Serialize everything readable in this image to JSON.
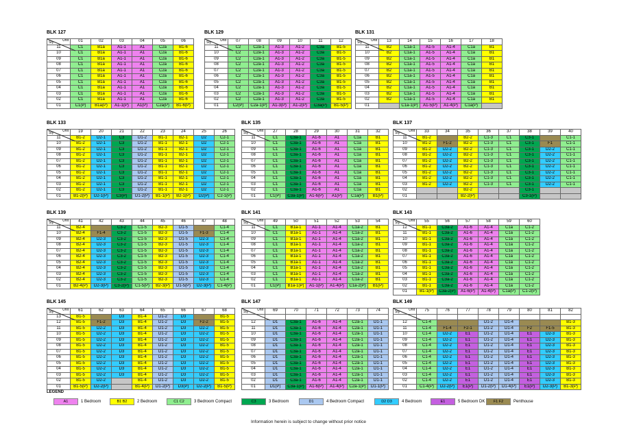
{
  "corner": {
    "top": "Unit",
    "bottom": "Sty"
  },
  "footer": "Information herein is subject to change without prior notice",
  "palette": {
    "pink": "#EE82EE",
    "yellow": "#FFFF00",
    "light_green": "#90EE90",
    "dark_green": "#00A650",
    "light_blue": "#AAC8F0",
    "cyan": "#33CCFF",
    "purple": "#C45FE0",
    "brown": "#9A8A52",
    "gray": "#C6C6C6"
  },
  "legend": {
    "title": "LEGEND",
    "items": [
      {
        "code": "A1",
        "label": "1 Bedroom",
        "color": "#EE82EE"
      },
      {
        "code": "B1 B2",
        "label": "2 Bedroom",
        "color": "#FFFF00"
      },
      {
        "code": "C1 C2",
        "label": "3 Bedroom Compact",
        "color": "#90EE90"
      },
      {
        "code": "C3",
        "label": "3 Bedroom",
        "color": "#00A650"
      },
      {
        "code": "D1",
        "label": "4 Bedroom Compact",
        "color": "#AAC8F0"
      },
      {
        "code": "D2 D3",
        "label": "4 Bedroom",
        "color": "#33CCFF"
      },
      {
        "code": "E1",
        "label": "5 Bedroom DK",
        "color": "#C45FE0"
      },
      {
        "code": "F1 F2",
        "label": "Penthouse",
        "color": "#9A8A52"
      }
    ]
  },
  "blocks": [
    {
      "title": "BLK 127",
      "units": [
        "01",
        "02",
        "03",
        "04",
        "05",
        "06"
      ],
      "rows": [
        {
          "storeys": [
            "11",
            "10",
            "09",
            "08",
            "07",
            "06",
            "05",
            "04",
            "03",
            "02"
          ],
          "cells": [
            "C1",
            "B1a",
            "A1-1",
            "A1",
            "C2a",
            "B1-6"
          ]
        },
        {
          "storeys": [
            "01"
          ],
          "cells": [
            "C1(P)",
            "B1a(P)",
            "A1-1(P)",
            "A1(P)",
            "C2a(P)",
            "B1-6(P)"
          ]
        }
      ]
    },
    {
      "title": "BLK 129",
      "units": [
        "07",
        "08",
        "09",
        "10",
        "11",
        "12"
      ],
      "rows": [
        {
          "storeys": [
            "11",
            "10",
            "09",
            "08",
            "07",
            "06",
            "05",
            "04",
            "03",
            "02"
          ],
          "cells": [
            "C2",
            "C2a-1",
            "A1-3",
            "A1-2",
            "C3a",
            "B1-5"
          ]
        },
        {
          "storeys": [
            "01"
          ],
          "cells": [
            "C2(P)",
            "C2a-1(P)",
            "A1-3(P)",
            "A1-2(P)",
            "C3a(P)",
            "B1-5(P)"
          ]
        }
      ]
    },
    {
      "title": "BLK 131",
      "units": [
        "13",
        "14",
        "15",
        "16",
        "17",
        "18"
      ],
      "rows": [
        {
          "storeys": [
            "11",
            "10",
            "09",
            "08",
            "07",
            "06",
            "05",
            "04",
            "03",
            "02"
          ],
          "cells": [
            "B2",
            "C1a-1",
            "A1-5",
            "A1-4",
            "C1a",
            "B1"
          ]
        },
        {
          "storeys": [
            "01"
          ],
          "cells": [
            "X",
            "C1a-1(P)",
            "A1-5(P)",
            "A1-4(P)",
            "C1a(P)",
            "X"
          ]
        }
      ]
    },
    {
      "title": "BLK 133",
      "units": [
        "19",
        "20",
        "21",
        "22",
        "23",
        "24",
        "25",
        "26"
      ],
      "rows": [
        {
          "storeys": [
            "11",
            "10",
            "09",
            "08",
            "07",
            "06",
            "05",
            "04",
            "03",
            "02"
          ],
          "cells": [
            "B1-2",
            "D2-1",
            "C3",
            "D1-2",
            "B1-1",
            "B2-1",
            "D2",
            "C2-1"
          ]
        },
        {
          "storeys": [
            "01"
          ],
          "cells": [
            "B1-2(P)",
            "D2-1(P)",
            "C3(P)",
            "D1-2(P)",
            "B1-1(P)",
            "B2-1(P)",
            "D2(P)",
            "C2-1(P)"
          ]
        }
      ]
    },
    {
      "title": "BLK 135",
      "units": [
        "27",
        "28",
        "29",
        "30",
        "31",
        "32"
      ],
      "rows": [
        {
          "storeys": [
            "11",
            "10",
            "09",
            "08",
            "07",
            "06",
            "05",
            "04",
            "03",
            "02"
          ],
          "cells": [
            "C1",
            "C3a-1",
            "A1-6",
            "A1",
            "C1a",
            "B1"
          ]
        },
        {
          "storeys": [
            "01"
          ],
          "cells": [
            "C1(P)",
            "C3a-1(P)",
            "A1-6(P)",
            "A1(P)",
            "C1a(P)",
            "B1(P)"
          ]
        }
      ]
    },
    {
      "title": "BLK 137",
      "units": [
        "33",
        "34",
        "35",
        "36",
        "37",
        "38",
        "39",
        "40"
      ],
      "rows": [
        {
          "storeys": [
            "11"
          ],
          "cells": [
            "B1-2",
            "*F",
            "B2-2",
            "C1-3",
            "C1",
            "C3-1",
            "*F",
            "C1-1"
          ]
        },
        {
          "storeys": [
            "10"
          ],
          "cells": [
            "B1-2",
            "F1-2",
            "B2-2",
            "C1-3",
            "C1",
            "C3-1",
            "F1",
            "C1-1"
          ]
        },
        {
          "storeys": [
            "09",
            "08",
            "07",
            "06",
            "05",
            "04",
            "03"
          ],
          "cells": [
            "B1-2",
            "D2-2",
            "B2-2",
            "C1-3",
            "C1",
            "C3-1",
            "D2-2",
            "C1-1"
          ]
        },
        {
          "storeys": [
            "02"
          ],
          "cells": [
            "X",
            "X",
            "B2-2",
            "X",
            "X",
            "C3-1",
            "X",
            "X"
          ]
        },
        {
          "storeys": [
            "01"
          ],
          "cells": [
            "X",
            "X",
            "B2-2(P)",
            "X",
            "X",
            "C3-1(P)",
            "X",
            "X"
          ]
        }
      ]
    },
    {
      "title": "BLK 139",
      "units": [
        "41",
        "42",
        "43",
        "44",
        "45",
        "46",
        "47",
        "48"
      ],
      "rows": [
        {
          "storeys": [
            "11"
          ],
          "cells": [
            "B2-4",
            "*F",
            "C3-2",
            "C1-5",
            "B2-3",
            "D1-5",
            "*F",
            "C1-4"
          ]
        },
        {
          "storeys": [
            "10"
          ],
          "cells": [
            "B2-4",
            "F1-4",
            "C3-2",
            "C1-5",
            "B2-3",
            "D1-5",
            "F1-3",
            "C1-4"
          ]
        },
        {
          "storeys": [
            "09",
            "08",
            "07",
            "06",
            "05",
            "04",
            "03",
            "02"
          ],
          "cells": [
            "B2-4",
            "D2-3",
            "C3-2",
            "C1-5",
            "B2-3",
            "D1-5",
            "D2-3",
            "C1-4"
          ]
        },
        {
          "storeys": [
            "01"
          ],
          "cells": [
            "B2-4(P)",
            "D2-3(P)",
            "C3-2(P)",
            "C1-5(P)",
            "B2-3(P)",
            "D1-5(P)",
            "D2-3(P)",
            "C1-4(P)"
          ]
        }
      ]
    },
    {
      "title": "BLK 141",
      "units": [
        "49",
        "50",
        "51",
        "52",
        "53",
        "54"
      ],
      "rows": [
        {
          "storeys": [
            "11",
            "10",
            "09",
            "08",
            "07",
            "06",
            "05",
            "04",
            "03",
            "02"
          ],
          "cells": [
            "C1",
            "B1a-1",
            "A1-1",
            "A1-4",
            "C1a-2",
            "B1"
          ]
        },
        {
          "storeys": [
            "01"
          ],
          "cells": [
            "C1(P)",
            "B1a-1(P)",
            "A1-1(P)",
            "A1-4(P)",
            "C1a-2(P)",
            "B1(P)"
          ]
        }
      ]
    },
    {
      "title": "BLK 143",
      "units": [
        "55",
        "56",
        "57",
        "58",
        "59",
        "60"
      ],
      "rows": [
        {
          "storeys": [
            "12",
            "11",
            "10",
            "09",
            "08",
            "07",
            "06",
            "05",
            "04",
            "03",
            "02"
          ],
          "cells": [
            "B1-1",
            "C3a-2",
            "A1-6",
            "A1-4",
            "C1a",
            "C1-2"
          ]
        },
        {
          "storeys": [
            "01"
          ],
          "cells": [
            "B1-1(P)",
            "C3a-2(P)",
            "A1-6(P)",
            "A1-4(P)",
            "C1a(P)",
            "C1-2(P)"
          ]
        }
      ]
    },
    {
      "title": "BLK 145",
      "units": [
        "61",
        "62",
        "63",
        "64",
        "65",
        "66",
        "67",
        "68"
      ],
      "rows": [
        {
          "storeys": [
            "13"
          ],
          "cells": [
            "B1-5",
            "*F",
            "D3",
            "B1-4",
            "D1-2",
            "D3",
            "*F",
            "B1-5"
          ]
        },
        {
          "storeys": [
            "12"
          ],
          "cells": [
            "B1-5",
            "F1-2",
            "D3",
            "B1-4",
            "D1-2",
            "D3",
            "F2-2",
            "B1-5"
          ]
        },
        {
          "storeys": [
            "11",
            "10",
            "09",
            "08",
            "07",
            "06",
            "05",
            "04",
            "03"
          ],
          "cells": [
            "B1-5",
            "D2-2",
            "D3",
            "B1-4",
            "D1-2",
            "D3",
            "D2-2",
            "B1-5"
          ]
        },
        {
          "storeys": [
            "02"
          ],
          "cells": [
            "B1-5",
            "D2-2",
            "X",
            "B1-4",
            "D1-2",
            "D3",
            "D2-2",
            "B1-5"
          ]
        },
        {
          "storeys": [
            "01"
          ],
          "cells": [
            "B1-5(P)",
            "D2-2(P)",
            "X",
            "B1-4(P)",
            "D1-2(P)",
            "D3(P)",
            "D2-2(P)",
            "B1-5(P)"
          ]
        }
      ]
    },
    {
      "title": "BLK 147",
      "units": [
        "69",
        "70",
        "71",
        "72",
        "73",
        "74"
      ],
      "rows": [
        {
          "storeys": [
            ""
          ],
          "cells": [
            "-",
            "-",
            "-",
            "-",
            "-",
            "-"
          ]
        },
        {
          "storeys": [
            "12",
            "11",
            "10",
            "09",
            "08",
            "07",
            "06",
            "05",
            "04",
            "03",
            "02"
          ],
          "cells": [
            "D1",
            "C3a-1",
            "A1-6",
            "A1-4",
            "C2a-1",
            "D1-1"
          ]
        },
        {
          "storeys": [
            "01"
          ],
          "cells": [
            "D1(P)",
            "C3a-1(P)",
            "A1-6(P)",
            "A1-4(P)",
            "C2a-1(P)",
            "D1-1(P)"
          ]
        }
      ]
    },
    {
      "title": "BLK 149",
      "units": [
        "75",
        "76",
        "77",
        "78",
        "79",
        "80",
        "81",
        "82"
      ],
      "rows": [
        {
          "storeys": [
            ""
          ],
          "cells": [
            "-",
            "-",
            "-",
            "-",
            "-",
            "-",
            "-",
            "-"
          ]
        },
        {
          "storeys": [
            "12"
          ],
          "cells": [
            "C1-4",
            "*F",
            "*F",
            "D1-2",
            "D1-4",
            "*F",
            "*F",
            "B1-3"
          ]
        },
        {
          "storeys": [
            "11"
          ],
          "cells": [
            "C1-4",
            "F1-4",
            "F2-1",
            "D1-2",
            "D1-4",
            "F2",
            "F1-5",
            "B1-3"
          ]
        },
        {
          "storeys": [
            "10",
            "09",
            "08",
            "07",
            "06",
            "05",
            "04",
            "03",
            "02"
          ],
          "cells": [
            "C1-4",
            "D2-2",
            "E1",
            "D1-2",
            "D1-4",
            "E1",
            "D2-3",
            "B1-3"
          ]
        },
        {
          "storeys": [
            "01"
          ],
          "cells": [
            "C1-4(P)",
            "D2-2(P)",
            "E1(P)",
            "D1-2(P)",
            "D1-4(P)",
            "E1(P)",
            "D2-3(P)",
            "B1-3(P)"
          ]
        }
      ]
    }
  ]
}
